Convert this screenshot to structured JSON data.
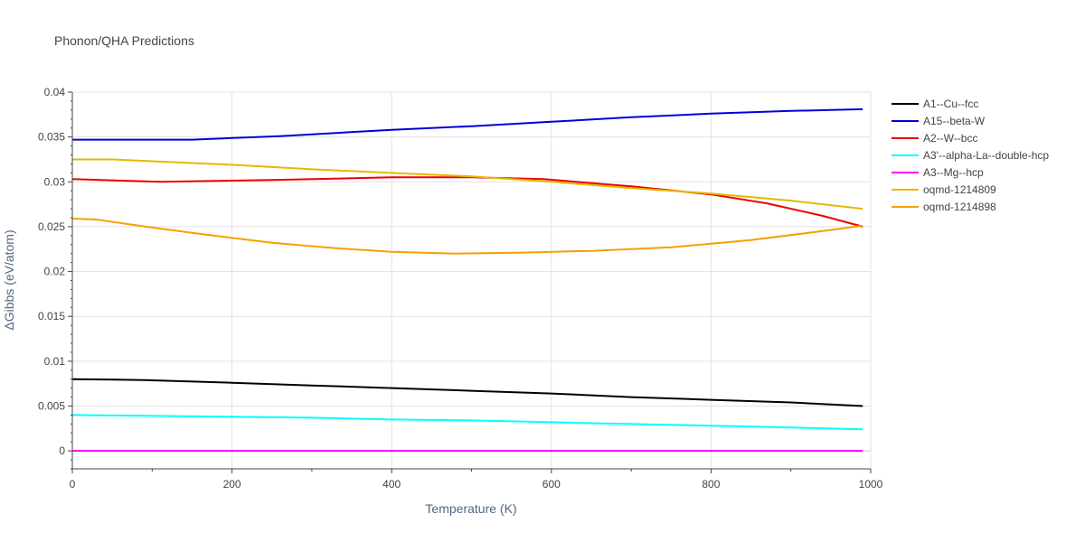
{
  "chart_data": {
    "type": "line",
    "title": "Phonon/QHA Predictions",
    "xlabel": "Temperature (K)",
    "ylabel": "ΔGibbs (eV/atom)",
    "xlim": [
      0,
      1000
    ],
    "ylim": [
      -0.002,
      0.04
    ],
    "x_ticks": [
      0,
      200,
      400,
      600,
      800,
      1000
    ],
    "x_tick_labels": [
      "0",
      "200",
      "400",
      "600",
      "800",
      "1000"
    ],
    "y_ticks": [
      0,
      0.005,
      0.01,
      0.015,
      0.02,
      0.025,
      0.03,
      0.035,
      0.04
    ],
    "y_tick_labels": [
      "0",
      "0.005",
      "0.01",
      "0.015",
      "0.02",
      "0.025",
      "0.03",
      "0.035",
      "0.04"
    ],
    "grid": true,
    "legend_position": "right",
    "series": [
      {
        "name": "A1--Cu--fcc",
        "color": "#000000",
        "x": [
          0,
          90,
          200,
          300,
          400,
          500,
          600,
          700,
          800,
          900,
          990
        ],
        "y": [
          0.008,
          0.0079,
          0.0076,
          0.0073,
          0.007,
          0.0067,
          0.0064,
          0.006,
          0.0057,
          0.0054,
          0.005
        ]
      },
      {
        "name": "A15--beta-W",
        "color": "#0000dd",
        "x": [
          0,
          150,
          260,
          400,
          500,
          600,
          700,
          800,
          900,
          990
        ],
        "y": [
          0.0347,
          0.0347,
          0.0351,
          0.0358,
          0.0362,
          0.0367,
          0.0372,
          0.0376,
          0.0379,
          0.0381
        ]
      },
      {
        "name": "A2--W--bcc",
        "color": "#ee0000",
        "x": [
          0,
          110,
          250,
          400,
          500,
          590,
          700,
          800,
          870,
          940,
          990
        ],
        "y": [
          0.0303,
          0.03,
          0.0302,
          0.0305,
          0.0305,
          0.0303,
          0.0295,
          0.0286,
          0.0276,
          0.0262,
          0.025
        ]
      },
      {
        "name": "A3'--alpha-La--double-hcp",
        "color": "#00ffff",
        "x": [
          0,
          100,
          200,
          300,
          400,
          500,
          600,
          700,
          800,
          900,
          990
        ],
        "y": [
          0.004,
          0.0039,
          0.0038,
          0.0037,
          0.0035,
          0.0034,
          0.0032,
          0.003,
          0.0028,
          0.0026,
          0.0024
        ]
      },
      {
        "name": "A3--Mg--hcp",
        "color": "#ff00ff",
        "x": [
          0,
          990
        ],
        "y": [
          0,
          0
        ]
      },
      {
        "name": "oqmd-1214809",
        "color": "#e6b800",
        "x": [
          0,
          50,
          200,
          300,
          400,
          500,
          600,
          700,
          800,
          900,
          990
        ],
        "y": [
          0.0325,
          0.0325,
          0.0319,
          0.0314,
          0.031,
          0.0306,
          0.03,
          0.0293,
          0.0287,
          0.0279,
          0.027
        ]
      },
      {
        "name": "oqmd-1214898",
        "color": "#f5a000",
        "x": [
          0,
          30,
          100,
          160,
          250,
          330,
          400,
          480,
          560,
          650,
          750,
          850,
          930,
          990
        ],
        "y": [
          0.0259,
          0.0258,
          0.0249,
          0.0242,
          0.0232,
          0.0226,
          0.0222,
          0.022,
          0.0221,
          0.0223,
          0.0227,
          0.0235,
          0.0244,
          0.0251
        ]
      }
    ]
  }
}
